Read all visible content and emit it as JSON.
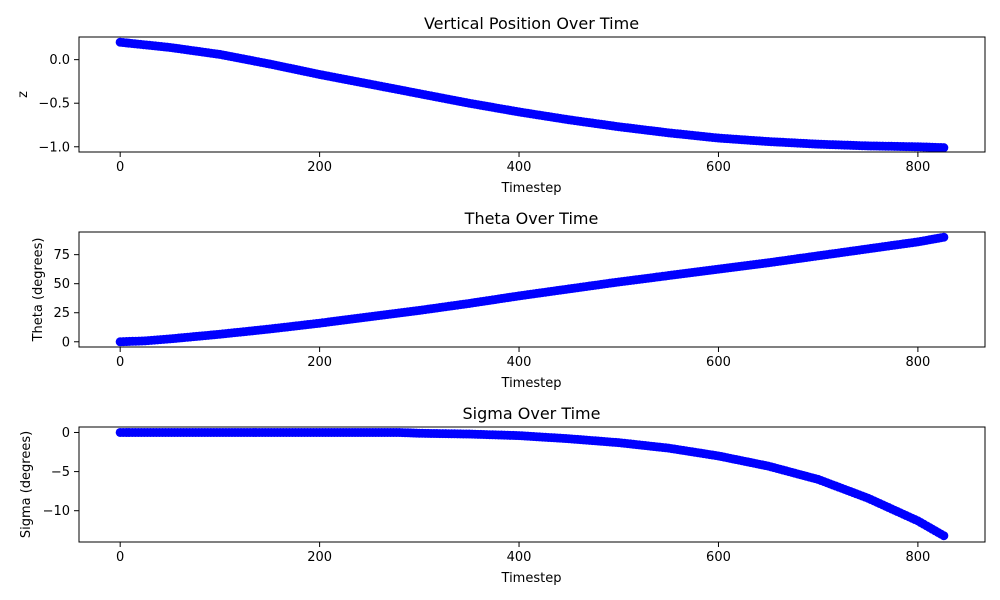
{
  "colors": {
    "marker": "#0000ff",
    "axes": "#000000",
    "background": "#ffffff"
  },
  "chart_data": [
    {
      "type": "scatter",
      "title": "Vertical Position Over Time",
      "xlabel": "Timestep",
      "ylabel": "z",
      "xlim": [
        -41.3,
        867.3
      ],
      "ylim": [
        -1.06,
        0.26
      ],
      "xticks": [
        0,
        200,
        400,
        600,
        800
      ],
      "xtick_labels": [
        "0",
        "200",
        "400",
        "600",
        "800"
      ],
      "yticks": [
        0.0,
        -0.5,
        -1.0
      ],
      "ytick_labels": [
        "0.0",
        "−0.5",
        "−1.0"
      ],
      "grid": false,
      "series": [
        {
          "marker": "circle",
          "x": [
            0,
            50,
            100,
            150,
            200,
            250,
            300,
            350,
            400,
            450,
            500,
            550,
            600,
            650,
            700,
            750,
            800,
            826
          ],
          "y": [
            0.2,
            0.14,
            0.06,
            -0.05,
            -0.17,
            -0.28,
            -0.39,
            -0.5,
            -0.6,
            -0.69,
            -0.77,
            -0.84,
            -0.9,
            -0.94,
            -0.97,
            -0.99,
            -1.0,
            -1.01
          ]
        }
      ]
    },
    {
      "type": "scatter",
      "title": "Theta Over Time",
      "xlabel": "Timestep",
      "ylabel": "Theta (degrees)",
      "xlim": [
        -41.3,
        867.3
      ],
      "ylim": [
        -4.5,
        94.5
      ],
      "xticks": [
        0,
        200,
        400,
        600,
        800
      ],
      "xtick_labels": [
        "0",
        "200",
        "400",
        "600",
        "800"
      ],
      "yticks": [
        0,
        25,
        50,
        75
      ],
      "ytick_labels": [
        "0",
        "25",
        "50",
        "75"
      ],
      "grid": false,
      "series": [
        {
          "marker": "circle",
          "x": [
            0,
            25,
            50,
            100,
            150,
            200,
            250,
            300,
            350,
            400,
            450,
            500,
            550,
            600,
            650,
            700,
            750,
            800,
            826
          ],
          "y": [
            0,
            0.8,
            2.5,
            6.5,
            11,
            16,
            21.5,
            27,
            33,
            39.5,
            45.5,
            51.5,
            57,
            62.5,
            68,
            74,
            80,
            86,
            90
          ]
        }
      ]
    },
    {
      "type": "scatter",
      "title": "Sigma Over Time",
      "xlabel": "Timestep",
      "ylabel": "Sigma (degrees)",
      "xlim": [
        -41.3,
        867.3
      ],
      "ylim": [
        -14.0,
        0.7
      ],
      "xticks": [
        0,
        200,
        400,
        600,
        800
      ],
      "xtick_labels": [
        "0",
        "200",
        "400",
        "600",
        "800"
      ],
      "yticks": [
        0,
        -5,
        -10
      ],
      "ytick_labels": [
        "0",
        "−5",
        "−10"
      ],
      "grid": false,
      "series": [
        {
          "marker": "circle",
          "x": [
            0,
            100,
            200,
            280,
            300,
            350,
            400,
            450,
            500,
            550,
            600,
            650,
            700,
            750,
            800,
            826
          ],
          "y": [
            0,
            0,
            0,
            0,
            -0.1,
            -0.2,
            -0.4,
            -0.8,
            -1.3,
            -2.0,
            -3.0,
            -4.3,
            -6.0,
            -8.4,
            -11.3,
            -13.2
          ]
        }
      ]
    }
  ]
}
